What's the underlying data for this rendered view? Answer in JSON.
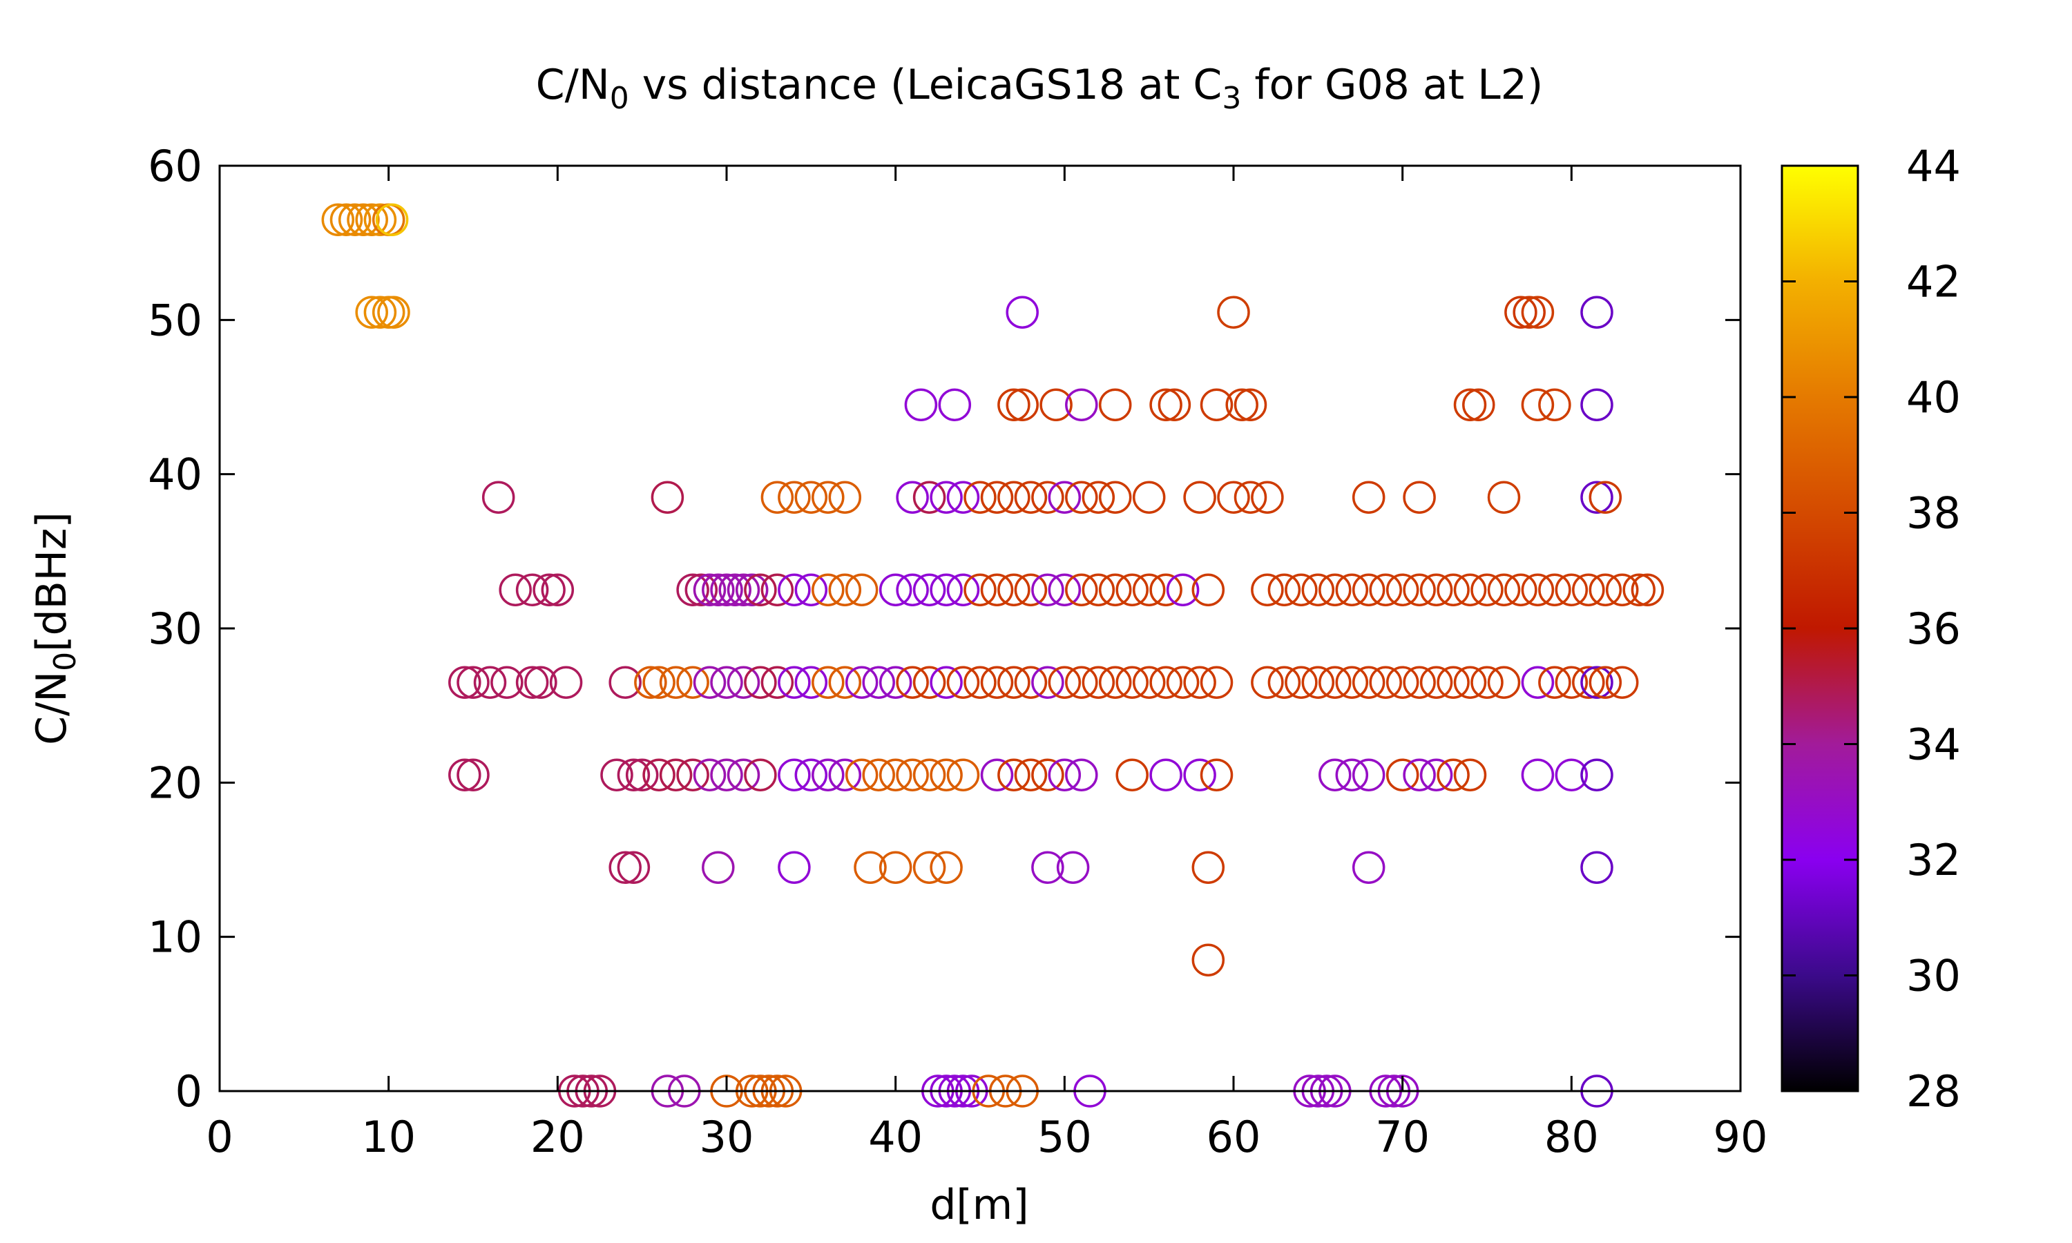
{
  "chart_data": {
    "type": "scatter",
    "title": {
      "prefix": "C/N",
      "sub1": "0",
      "middle": " vs distance (LeicaGS18 at C",
      "sub2": "3",
      "suffix": " for G08 at L2)"
    },
    "xlabel": "d[m]",
    "ylabel": {
      "prefix": "C/N",
      "sub": "0",
      "suffix": "[dBHz]"
    },
    "xlim": [
      0,
      90
    ],
    "ylim": [
      0,
      60
    ],
    "xticks": [
      "0",
      "10",
      "20",
      "30",
      "40",
      "50",
      "60",
      "70",
      "80",
      "90"
    ],
    "yticks": [
      "0",
      "10",
      "20",
      "30",
      "40",
      "50",
      "60"
    ],
    "colorbar": {
      "range": [
        28,
        44
      ],
      "ticks": [
        "28",
        "30",
        "32",
        "34",
        "36",
        "38",
        "40",
        "42",
        "44"
      ],
      "palette": [
        "#000000",
        "#3b0a8a",
        "#8a00f0",
        "#a21b9a",
        "#c01800",
        "#d44a00",
        "#e57a00",
        "#f3b000",
        "#ffff00"
      ]
    },
    "points": [
      [
        7.0,
        56.5,
        40.6
      ],
      [
        7.5,
        56.5,
        40.6
      ],
      [
        8.0,
        56.5,
        40.6
      ],
      [
        8.5,
        56.5,
        40.6
      ],
      [
        9.0,
        56.5,
        40.6
      ],
      [
        9.5,
        56.5,
        40.8
      ],
      [
        10.0,
        56.5,
        39.8
      ],
      [
        10.2,
        56.5,
        42.5
      ],
      [
        9.0,
        50.5,
        40.7
      ],
      [
        9.5,
        50.5,
        40.7
      ],
      [
        10.0,
        50.5,
        40.7
      ],
      [
        10.3,
        50.5,
        40.7
      ],
      [
        47.5,
        50.5,
        32.5
      ],
      [
        60.0,
        50.5,
        37.5
      ],
      [
        77.0,
        50.5,
        37.3
      ],
      [
        77.5,
        50.5,
        37.3
      ],
      [
        78.0,
        50.5,
        37.5
      ],
      [
        81.5,
        50.5,
        31.2
      ],
      [
        41.5,
        44.5,
        32.6
      ],
      [
        43.5,
        44.5,
        32.6
      ],
      [
        47.0,
        44.5,
        37.4
      ],
      [
        47.5,
        44.5,
        37.4
      ],
      [
        49.5,
        44.5,
        37.4
      ],
      [
        51.0,
        44.5,
        33.0
      ],
      [
        53.0,
        44.5,
        37.4
      ],
      [
        56.0,
        44.5,
        37.4
      ],
      [
        56.5,
        44.5,
        37.4
      ],
      [
        59.0,
        44.5,
        37.4
      ],
      [
        60.5,
        44.5,
        37.4
      ],
      [
        61.0,
        44.5,
        37.4
      ],
      [
        74.0,
        44.5,
        37.4
      ],
      [
        74.5,
        44.5,
        37.4
      ],
      [
        78.0,
        44.5,
        37.5
      ],
      [
        79.0,
        44.5,
        37.5
      ],
      [
        81.5,
        44.5,
        31.2
      ],
      [
        16.5,
        38.5,
        34.8
      ],
      [
        26.5,
        38.5,
        35.0
      ],
      [
        33.0,
        38.5,
        38.8
      ],
      [
        34.0,
        38.5,
        38.8
      ],
      [
        35.0,
        38.5,
        38.8
      ],
      [
        36.0,
        38.5,
        38.8
      ],
      [
        37.0,
        38.5,
        38.8
      ],
      [
        41.0,
        38.5,
        32.6
      ],
      [
        42.0,
        38.5,
        35.0
      ],
      [
        43.0,
        38.5,
        32.6
      ],
      [
        44.0,
        38.5,
        32.6
      ],
      [
        45.0,
        38.5,
        37.4
      ],
      [
        46.0,
        38.5,
        37.4
      ],
      [
        47.0,
        38.5,
        37.4
      ],
      [
        48.0,
        38.5,
        37.4
      ],
      [
        49.0,
        38.5,
        37.4
      ],
      [
        50.0,
        38.5,
        33.0
      ],
      [
        51.0,
        38.5,
        37.4
      ],
      [
        52.0,
        38.5,
        37.4
      ],
      [
        53.0,
        38.5,
        37.4
      ],
      [
        55.0,
        38.5,
        37.4
      ],
      [
        58.0,
        38.5,
        37.4
      ],
      [
        60.0,
        38.5,
        37.4
      ],
      [
        61.0,
        38.5,
        37.4
      ],
      [
        62.0,
        38.5,
        37.4
      ],
      [
        68.0,
        38.5,
        37.4
      ],
      [
        71.0,
        38.5,
        37.4
      ],
      [
        76.0,
        38.5,
        37.5
      ],
      [
        81.5,
        38.5,
        31.2
      ],
      [
        82.0,
        38.5,
        37.4
      ],
      [
        17.5,
        32.5,
        34.8
      ],
      [
        18.5,
        32.5,
        34.8
      ],
      [
        19.5,
        32.5,
        34.8
      ],
      [
        20.0,
        32.5,
        34.8
      ],
      [
        28.0,
        32.5,
        34.8
      ],
      [
        28.5,
        32.5,
        34.8
      ],
      [
        29.0,
        32.5,
        33.5
      ],
      [
        29.5,
        32.5,
        33.5
      ],
      [
        30.0,
        32.5,
        33.5
      ],
      [
        30.5,
        32.5,
        33.5
      ],
      [
        31.0,
        32.5,
        33.5
      ],
      [
        31.5,
        32.5,
        33.5
      ],
      [
        32.0,
        32.5,
        35.0
      ],
      [
        33.0,
        32.5,
        35.0
      ],
      [
        34.0,
        32.5,
        32.6
      ],
      [
        35.0,
        32.5,
        32.6
      ],
      [
        36.0,
        32.5,
        38.8
      ],
      [
        37.0,
        32.5,
        38.8
      ],
      [
        38.0,
        32.5,
        38.8
      ],
      [
        40.0,
        32.5,
        32.6
      ],
      [
        41.0,
        32.5,
        32.6
      ],
      [
        42.0,
        32.5,
        32.6
      ],
      [
        43.0,
        32.5,
        32.6
      ],
      [
        44.0,
        32.5,
        32.6
      ],
      [
        45.0,
        32.5,
        37.4
      ],
      [
        46.0,
        32.5,
        37.4
      ],
      [
        47.0,
        32.5,
        37.4
      ],
      [
        48.0,
        32.5,
        37.4
      ],
      [
        49.0,
        32.5,
        33.0
      ],
      [
        50.0,
        32.5,
        33.0
      ],
      [
        51.0,
        32.5,
        37.4
      ],
      [
        52.0,
        32.5,
        37.4
      ],
      [
        53.0,
        32.5,
        37.4
      ],
      [
        54.0,
        32.5,
        37.4
      ],
      [
        55.0,
        32.5,
        37.4
      ],
      [
        56.0,
        32.5,
        37.4
      ],
      [
        57.0,
        32.5,
        32.6
      ],
      [
        58.5,
        32.5,
        37.4
      ],
      [
        62.0,
        32.5,
        37.4
      ],
      [
        63.0,
        32.5,
        37.4
      ],
      [
        64.0,
        32.5,
        37.4
      ],
      [
        65.0,
        32.5,
        37.4
      ],
      [
        66.0,
        32.5,
        37.4
      ],
      [
        67.0,
        32.5,
        37.4
      ],
      [
        68.0,
        32.5,
        37.4
      ],
      [
        69.0,
        32.5,
        37.4
      ],
      [
        70.0,
        32.5,
        37.4
      ],
      [
        71.0,
        32.5,
        37.4
      ],
      [
        72.0,
        32.5,
        37.4
      ],
      [
        73.0,
        32.5,
        37.4
      ],
      [
        74.0,
        32.5,
        37.4
      ],
      [
        75.0,
        32.5,
        37.4
      ],
      [
        76.0,
        32.5,
        37.4
      ],
      [
        77.0,
        32.5,
        37.4
      ],
      [
        78.0,
        32.5,
        37.4
      ],
      [
        79.0,
        32.5,
        37.4
      ],
      [
        80.0,
        32.5,
        37.4
      ],
      [
        81.0,
        32.5,
        37.4
      ],
      [
        82.0,
        32.5,
        37.4
      ],
      [
        83.0,
        32.5,
        37.4
      ],
      [
        84.0,
        32.5,
        37.4
      ],
      [
        84.5,
        32.5,
        37.4
      ],
      [
        14.5,
        26.5,
        34.8
      ],
      [
        15.0,
        26.5,
        34.8
      ],
      [
        16.0,
        26.5,
        34.8
      ],
      [
        17.0,
        26.5,
        34.8
      ],
      [
        18.5,
        26.5,
        34.8
      ],
      [
        19.0,
        26.5,
        34.8
      ],
      [
        20.5,
        26.5,
        34.8
      ],
      [
        24.0,
        26.5,
        34.8
      ],
      [
        25.5,
        26.5,
        38.8
      ],
      [
        26.0,
        26.5,
        38.8
      ],
      [
        27.0,
        26.5,
        38.8
      ],
      [
        28.0,
        26.5,
        38.8
      ],
      [
        29.0,
        26.5,
        33.5
      ],
      [
        30.0,
        26.5,
        33.5
      ],
      [
        31.0,
        26.5,
        33.5
      ],
      [
        32.0,
        26.5,
        35.0
      ],
      [
        33.0,
        26.5,
        35.0
      ],
      [
        34.0,
        26.5,
        32.6
      ],
      [
        35.0,
        26.5,
        32.6
      ],
      [
        36.0,
        26.5,
        38.8
      ],
      [
        37.0,
        26.5,
        38.8
      ],
      [
        38.0,
        26.5,
        33.0
      ],
      [
        39.0,
        26.5,
        33.0
      ],
      [
        40.0,
        26.5,
        33.0
      ],
      [
        41.0,
        26.5,
        37.4
      ],
      [
        42.0,
        26.5,
        37.4
      ],
      [
        43.0,
        26.5,
        32.6
      ],
      [
        44.0,
        26.5,
        37.4
      ],
      [
        45.0,
        26.5,
        37.4
      ],
      [
        46.0,
        26.5,
        37.4
      ],
      [
        47.0,
        26.5,
        37.4
      ],
      [
        48.0,
        26.5,
        37.4
      ],
      [
        49.0,
        26.5,
        33.0
      ],
      [
        50.0,
        26.5,
        37.4
      ],
      [
        51.0,
        26.5,
        37.4
      ],
      [
        52.0,
        26.5,
        37.4
      ],
      [
        53.0,
        26.5,
        37.4
      ],
      [
        54.0,
        26.5,
        37.4
      ],
      [
        55.0,
        26.5,
        37.4
      ],
      [
        56.0,
        26.5,
        37.4
      ],
      [
        57.0,
        26.5,
        37.4
      ],
      [
        58.0,
        26.5,
        37.4
      ],
      [
        59.0,
        26.5,
        37.4
      ],
      [
        62.0,
        26.5,
        37.4
      ],
      [
        63.0,
        26.5,
        37.4
      ],
      [
        64.0,
        26.5,
        37.4
      ],
      [
        65.0,
        26.5,
        37.4
      ],
      [
        66.0,
        26.5,
        37.4
      ],
      [
        67.0,
        26.5,
        37.4
      ],
      [
        68.0,
        26.5,
        37.4
      ],
      [
        69.0,
        26.5,
        37.4
      ],
      [
        70.0,
        26.5,
        37.4
      ],
      [
        71.0,
        26.5,
        37.4
      ],
      [
        72.0,
        26.5,
        37.4
      ],
      [
        73.0,
        26.5,
        37.4
      ],
      [
        74.0,
        26.5,
        37.4
      ],
      [
        75.0,
        26.5,
        37.4
      ],
      [
        76.0,
        26.5,
        37.4
      ],
      [
        78.0,
        26.5,
        32.6
      ],
      [
        79.0,
        26.5,
        37.4
      ],
      [
        80.0,
        26.5,
        37.4
      ],
      [
        81.0,
        26.5,
        37.4
      ],
      [
        81.5,
        26.5,
        31.2
      ],
      [
        82.0,
        26.5,
        37.4
      ],
      [
        83.0,
        26.5,
        37.4
      ],
      [
        14.5,
        20.5,
        34.8
      ],
      [
        15.0,
        20.5,
        34.8
      ],
      [
        23.5,
        20.5,
        34.8
      ],
      [
        24.5,
        20.5,
        34.8
      ],
      [
        25.0,
        20.5,
        34.8
      ],
      [
        26.0,
        20.5,
        35.0
      ],
      [
        27.0,
        20.5,
        35.0
      ],
      [
        28.0,
        20.5,
        35.0
      ],
      [
        29.0,
        20.5,
        33.5
      ],
      [
        30.0,
        20.5,
        33.5
      ],
      [
        31.0,
        20.5,
        33.5
      ],
      [
        32.0,
        20.5,
        35.0
      ],
      [
        34.0,
        20.5,
        32.6
      ],
      [
        35.0,
        20.5,
        32.6
      ],
      [
        36.0,
        20.5,
        33.0
      ],
      [
        37.0,
        20.5,
        33.0
      ],
      [
        38.0,
        20.5,
        38.8
      ],
      [
        39.0,
        20.5,
        38.8
      ],
      [
        40.0,
        20.5,
        38.8
      ],
      [
        41.0,
        20.5,
        38.8
      ],
      [
        42.0,
        20.5,
        38.8
      ],
      [
        43.0,
        20.5,
        38.8
      ],
      [
        44.0,
        20.5,
        38.8
      ],
      [
        46.0,
        20.5,
        33.0
      ],
      [
        47.0,
        20.5,
        37.4
      ],
      [
        48.0,
        20.5,
        37.4
      ],
      [
        49.0,
        20.5,
        37.4
      ],
      [
        50.0,
        20.5,
        33.0
      ],
      [
        51.0,
        20.5,
        33.0
      ],
      [
        54.0,
        20.5,
        37.4
      ],
      [
        56.0,
        20.5,
        32.6
      ],
      [
        58.0,
        20.5,
        32.6
      ],
      [
        59.0,
        20.5,
        37.4
      ],
      [
        66.0,
        20.5,
        33.0
      ],
      [
        67.0,
        20.5,
        33.0
      ],
      [
        68.0,
        20.5,
        33.0
      ],
      [
        70.0,
        20.5,
        37.4
      ],
      [
        71.0,
        20.5,
        33.0
      ],
      [
        72.0,
        20.5,
        33.0
      ],
      [
        73.0,
        20.5,
        37.4
      ],
      [
        74.0,
        20.5,
        37.4
      ],
      [
        78.0,
        20.5,
        32.6
      ],
      [
        80.0,
        20.5,
        32.6
      ],
      [
        81.5,
        20.5,
        31.2
      ],
      [
        24.0,
        14.5,
        34.8
      ],
      [
        24.5,
        14.5,
        34.8
      ],
      [
        29.5,
        14.5,
        33.5
      ],
      [
        34.0,
        14.5,
        32.6
      ],
      [
        38.5,
        14.5,
        38.8
      ],
      [
        40.0,
        14.5,
        38.8
      ],
      [
        42.0,
        14.5,
        38.8
      ],
      [
        43.0,
        14.5,
        38.8
      ],
      [
        49.0,
        14.5,
        33.0
      ],
      [
        50.5,
        14.5,
        33.0
      ],
      [
        58.5,
        14.5,
        37.4
      ],
      [
        68.0,
        14.5,
        33.0
      ],
      [
        81.5,
        14.5,
        31.2
      ],
      [
        58.5,
        8.5,
        37.4
      ],
      [
        21.0,
        0.0,
        34.8
      ],
      [
        21.5,
        0.0,
        34.8
      ],
      [
        22.0,
        0.0,
        34.8
      ],
      [
        22.5,
        0.0,
        34.8
      ],
      [
        26.5,
        0.0,
        33.5
      ],
      [
        27.5,
        0.0,
        33.5
      ],
      [
        30.0,
        0.0,
        38.8
      ],
      [
        31.5,
        0.0,
        38.8
      ],
      [
        32.0,
        0.0,
        38.8
      ],
      [
        32.5,
        0.0,
        38.8
      ],
      [
        33.0,
        0.0,
        38.8
      ],
      [
        33.5,
        0.0,
        38.8
      ],
      [
        42.5,
        0.0,
        32.6
      ],
      [
        43.0,
        0.0,
        32.6
      ],
      [
        43.5,
        0.0,
        32.6
      ],
      [
        44.0,
        0.0,
        32.6
      ],
      [
        44.5,
        0.0,
        32.6
      ],
      [
        45.5,
        0.0,
        38.8
      ],
      [
        46.5,
        0.0,
        38.8
      ],
      [
        47.5,
        0.0,
        38.8
      ],
      [
        51.5,
        0.0,
        32.6
      ],
      [
        64.5,
        0.0,
        33.0
      ],
      [
        65.0,
        0.0,
        33.0
      ],
      [
        65.5,
        0.0,
        33.0
      ],
      [
        66.0,
        0.0,
        33.0
      ],
      [
        69.0,
        0.0,
        33.0
      ],
      [
        69.5,
        0.0,
        33.0
      ],
      [
        70.0,
        0.0,
        33.0
      ],
      [
        81.5,
        0.0,
        31.2
      ]
    ]
  }
}
